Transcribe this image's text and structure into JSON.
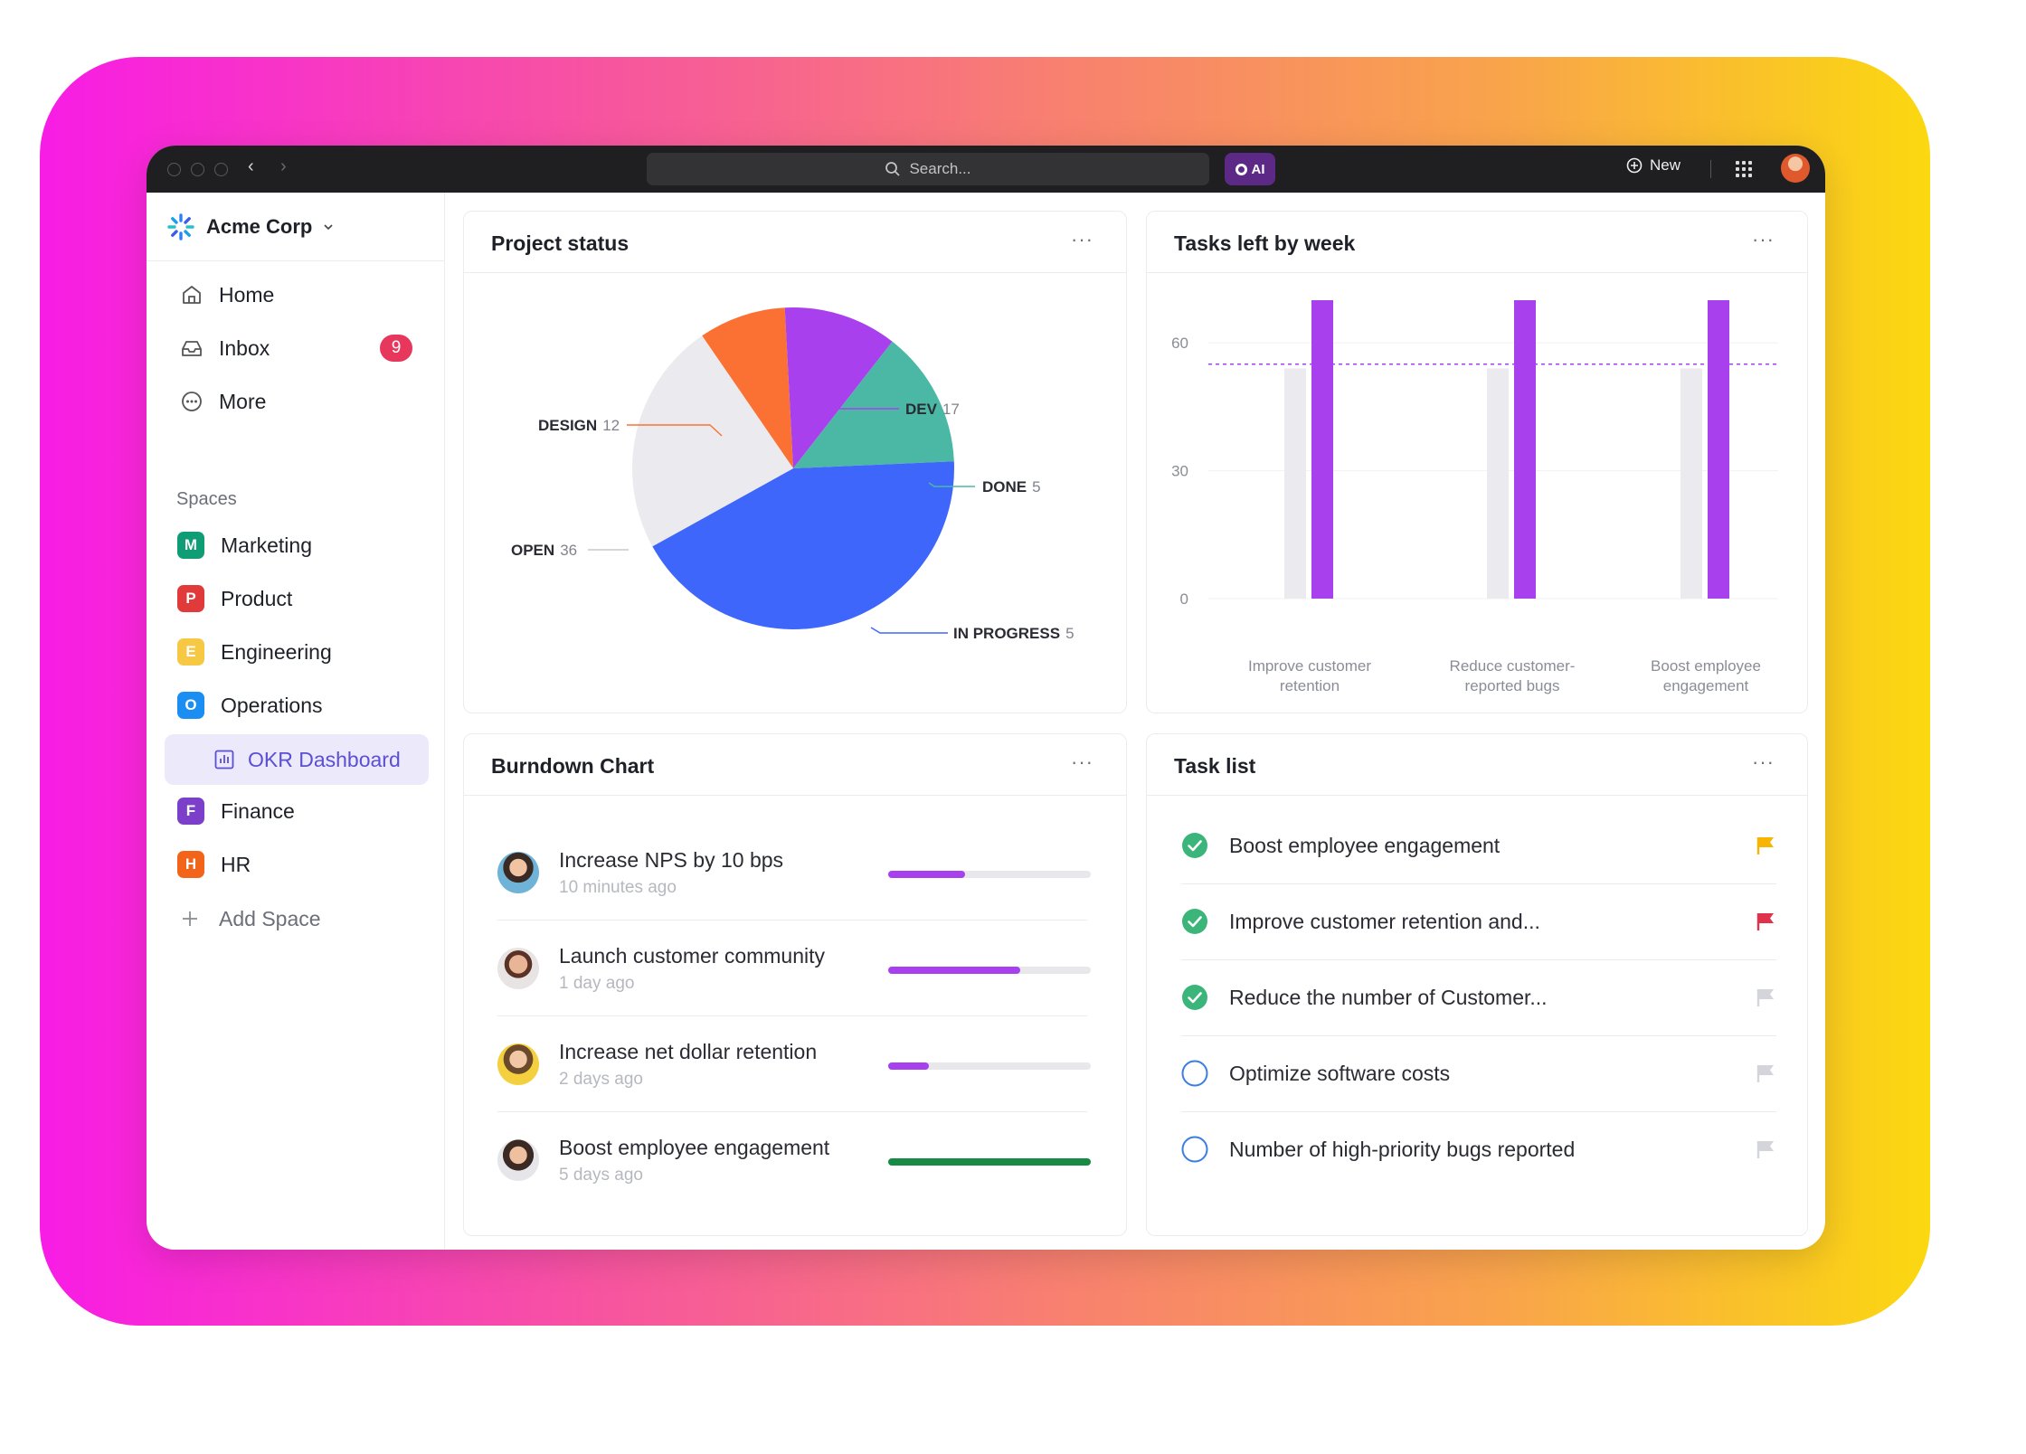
{
  "titlebar": {
    "search_placeholder": "Search...",
    "ai_label": "AI",
    "new_label": "New"
  },
  "sidebar": {
    "workspace": "Acme Corp",
    "nav": [
      {
        "label": "Home",
        "icon": "home-icon"
      },
      {
        "label": "Inbox",
        "icon": "inbox-icon",
        "badge": "9"
      },
      {
        "label": "More",
        "icon": "more-circle-icon"
      }
    ],
    "spaces_heading": "Spaces",
    "spaces": [
      {
        "letter": "M",
        "label": "Marketing",
        "color": "#0f9d76"
      },
      {
        "letter": "P",
        "label": "Product",
        "color": "#e03a3a"
      },
      {
        "letter": "E",
        "label": "Engineering",
        "color": "#f7c843"
      },
      {
        "letter": "O",
        "label": "Operations",
        "color": "#1a8ef2"
      },
      {
        "letter": "F",
        "label": "Finance",
        "color": "#7b3fc9"
      },
      {
        "letter": "H",
        "label": "HR",
        "color": "#f2641a"
      }
    ],
    "active_item": "OKR Dashboard",
    "add_space": "Add Space"
  },
  "project_status": {
    "title": "Project status",
    "menu": "···",
    "chart_data": {
      "type": "pie",
      "slices": [
        {
          "label": "DESIGN",
          "value": "12",
          "color": "#fb7133"
        },
        {
          "label": "DEV",
          "value": "17",
          "color": "#a940ee"
        },
        {
          "label": "DONE",
          "value": "5",
          "color": "#4bb8a5"
        },
        {
          "label": "IN PROGRESS",
          "value": "5",
          "color": "#3f66fa"
        },
        {
          "label": "OPEN",
          "value": "36",
          "color": "#ebebef"
        }
      ]
    }
  },
  "tasks_by_week": {
    "title": "Tasks left by week",
    "menu": "···",
    "chart_data": {
      "type": "bar",
      "categories": [
        [
          "Improve customer",
          "retention"
        ],
        [
          "Reduce customer-",
          "reported bugs"
        ],
        [
          "Boost employee",
          "engagement"
        ]
      ],
      "yticks": [
        "0",
        "30",
        "60"
      ],
      "ylim": [
        0,
        70
      ],
      "series": [
        {
          "values": [
            54,
            54,
            54
          ],
          "color": "#ebebef"
        },
        {
          "values": [
            70,
            70,
            70
          ],
          "color": "#a940ee"
        }
      ],
      "reference_line": 55
    }
  },
  "burndown": {
    "title": "Burndown Chart",
    "menu": "···",
    "rows": [
      {
        "name": "Increase NPS by 10 bps",
        "time": "10 minutes ago",
        "progress": 0.38,
        "color": "#a940ee"
      },
      {
        "name": "Launch customer community",
        "time": "1 day ago",
        "progress": 0.65,
        "color": "#a940ee"
      },
      {
        "name": "Increase net dollar retention",
        "time": "2 days ago",
        "progress": 0.2,
        "color": "#a940ee"
      },
      {
        "name": "Boost employee engagement",
        "time": "5 days ago",
        "progress": 1.0,
        "color": "#178a46"
      }
    ]
  },
  "task_list": {
    "title": "Task list",
    "menu": "···",
    "tasks": [
      {
        "name": "Boost employee engagement",
        "done": true,
        "flag": "#f7b500"
      },
      {
        "name": "Improve customer retention and...",
        "done": true,
        "flag": "#e0324a"
      },
      {
        "name": "Reduce the number of Customer...",
        "done": true,
        "flag": "#d4d5da"
      },
      {
        "name": "Optimize software costs",
        "done": false,
        "flag": "#d4d5da"
      },
      {
        "name": "Number of high-priority bugs reported",
        "done": false,
        "flag": "#d4d5da"
      }
    ]
  }
}
